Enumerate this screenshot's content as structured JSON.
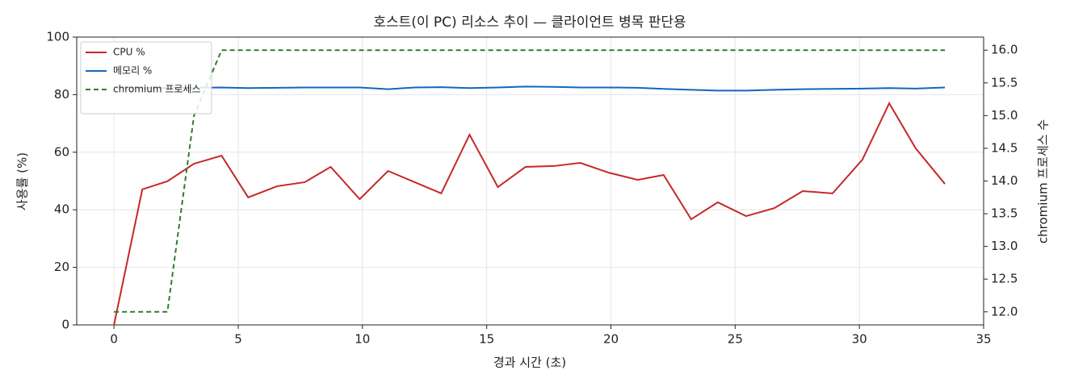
{
  "chart_data": {
    "type": "line",
    "title": "호스트(이 PC) 리소스 추이 — 클라이언트 병목 판단용",
    "xlabel": "경과 시간 (초)",
    "ylabel": "사용률 (%)",
    "y2label": "chromium 프로세스 수",
    "x": [
      0,
      1.14,
      2.15,
      3.22,
      4.33,
      5.4,
      6.57,
      7.68,
      8.72,
      9.89,
      11.03,
      12.1,
      13.17,
      14.31,
      15.45,
      16.56,
      17.7,
      18.77,
      19.91,
      21.08,
      22.12,
      23.23,
      24.3,
      25.44,
      26.58,
      27.72,
      28.92,
      30.12,
      31.2,
      32.27,
      33.44
    ],
    "series": [
      {
        "name": "CPU %",
        "color": "#c62828",
        "linestyle": "solid",
        "axis": "y",
        "values": [
          0,
          47.1,
          49.9,
          56.0,
          58.8,
          44.3,
          48.2,
          49.6,
          54.9,
          43.7,
          53.5,
          49.6,
          45.7,
          66.1,
          47.9,
          54.9,
          55.2,
          56.3,
          52.9,
          50.4,
          52.1,
          36.7,
          42.6,
          37.8,
          40.6,
          46.5,
          45.7,
          57.4,
          77.0,
          61.3,
          49.0
        ]
      },
      {
        "name": "메모리 %",
        "color": "#1565c0",
        "linestyle": "solid",
        "axis": "y",
        "values": [
          82.4,
          82.4,
          82.3,
          82.4,
          82.5,
          82.3,
          82.4,
          82.5,
          82.5,
          82.5,
          81.9,
          82.5,
          82.6,
          82.3,
          82.5,
          82.8,
          82.7,
          82.5,
          82.5,
          82.4,
          82.0,
          81.7,
          81.4,
          81.4,
          81.7,
          81.9,
          82.0,
          82.1,
          82.3,
          82.1,
          82.5
        ]
      },
      {
        "name": "chromium 프로세스",
        "color": "#2e7d32",
        "linestyle": "dashed",
        "axis": "y2",
        "values": [
          12,
          12,
          12,
          15,
          16,
          16,
          16,
          16,
          16,
          16,
          16,
          16,
          16,
          16,
          16,
          16,
          16,
          16,
          16,
          16,
          16,
          16,
          16,
          16,
          16,
          16,
          16,
          16,
          16,
          16,
          16
        ]
      }
    ],
    "xlim": [
      -1.5,
      35
    ],
    "xticks": [
      0,
      5,
      10,
      15,
      20,
      25,
      30,
      35
    ],
    "ylim": [
      0,
      100
    ],
    "yticks": [
      0,
      20,
      40,
      60,
      80,
      100
    ],
    "y2lim": [
      11.8,
      16.2
    ],
    "y2ticks": [
      {
        "value": 12,
        "label": "12.0"
      },
      {
        "value": 12.5,
        "label": "12.5"
      },
      {
        "value": 13,
        "label": "13.0"
      },
      {
        "value": 13.5,
        "label": "13.5"
      },
      {
        "value": 14,
        "label": "14.0"
      },
      {
        "value": 14.5,
        "label": "14.5"
      },
      {
        "value": 15,
        "label": "15.0"
      },
      {
        "value": 15.5,
        "label": "15.5"
      },
      {
        "value": 16,
        "label": "16.0"
      }
    ],
    "grid": true,
    "legend": "upper-left"
  }
}
